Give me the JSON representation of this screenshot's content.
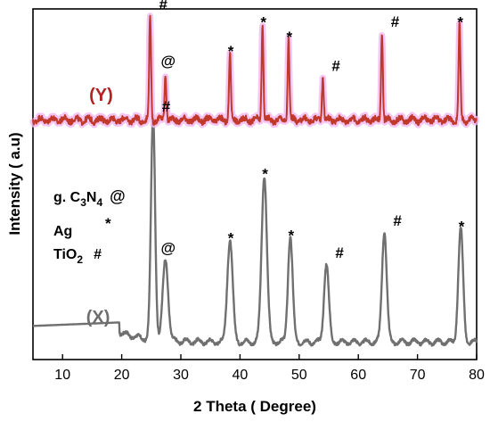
{
  "chart_data": {
    "type": "line",
    "xlabel": "2 Theta ( Degree)",
    "ylabel": "Intensity ( a.u)",
    "xlim": [
      5,
      80
    ],
    "xticks": [
      10,
      20,
      30,
      40,
      50,
      60,
      70,
      80
    ],
    "y_ticks_shown": false,
    "grid": false,
    "y_range": [
      0,
      12
    ],
    "legend": {
      "placement": "left",
      "entries": [
        {
          "label": "g. C",
          "sub1": "3",
          "mid": "N",
          "sub2": "4",
          "symbol": "@"
        },
        {
          "label": "Ag",
          "symbol": "*"
        },
        {
          "label": "TiO",
          "sub1": "2",
          "symbol": "#"
        }
      ]
    },
    "series": [
      {
        "name": "(X)",
        "color": "#707070",
        "label_color": "#6e6e6e",
        "label_pos": [
          14,
          1.25
        ],
        "baseline": 0.6,
        "noise": 0.05,
        "step": {
          "x_end": 19.6,
          "from": 1.15,
          "to": 0.6
        },
        "peaks": [
          {
            "x": 25.3,
            "y": 8.3,
            "w": 0.35,
            "marker": "#"
          },
          {
            "x": 27.4,
            "y": 3.4,
            "w": 0.45,
            "marker": "@"
          },
          {
            "x": 38.3,
            "y": 4.1,
            "w": 0.45,
            "marker": "*"
          },
          {
            "x": 44.1,
            "y": 6.3,
            "w": 0.45,
            "marker": "*"
          },
          {
            "x": 48.5,
            "y": 4.2,
            "w": 0.4,
            "marker": "*"
          },
          {
            "x": 54.6,
            "y": 3.3,
            "w": 0.4,
            "marker": "#"
          },
          {
            "x": 64.4,
            "y": 4.4,
            "w": 0.4,
            "marker": "#"
          },
          {
            "x": 77.3,
            "y": 4.5,
            "w": 0.4,
            "marker": "*"
          }
        ]
      },
      {
        "name": "(Y)",
        "color": "#c0392b",
        "label_color": "#b22222",
        "label_pos": [
          14.5,
          8.85
        ],
        "baseline": 8.2,
        "noise": 0.1,
        "peaks": [
          {
            "x": 24.8,
            "y": 11.8,
            "w": 0.15,
            "marker": "#"
          },
          {
            "x": 27.4,
            "y": 9.8,
            "w": 0.15,
            "marker": "@"
          },
          {
            "x": 38.3,
            "y": 10.5,
            "w": 0.15,
            "marker": "*"
          },
          {
            "x": 43.8,
            "y": 11.5,
            "w": 0.15,
            "marker": "*"
          },
          {
            "x": 48.2,
            "y": 11.0,
            "w": 0.15,
            "marker": "*"
          },
          {
            "x": 54.0,
            "y": 9.7,
            "w": 0.15,
            "marker": "#"
          },
          {
            "x": 64.0,
            "y": 11.2,
            "w": 0.15,
            "marker": "#"
          },
          {
            "x": 77.1,
            "y": 11.5,
            "w": 0.15,
            "marker": "*"
          }
        ]
      }
    ]
  }
}
